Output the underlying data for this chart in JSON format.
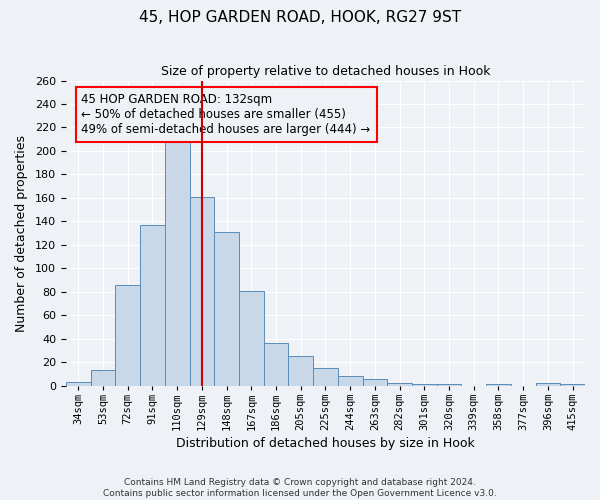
{
  "title": "45, HOP GARDEN ROAD, HOOK, RG27 9ST",
  "subtitle": "Size of property relative to detached houses in Hook",
  "xlabel": "Distribution of detached houses by size in Hook",
  "ylabel": "Number of detached properties",
  "bar_color_face": "#c8d8e8",
  "bar_color_edge": "#5b8db8",
  "bin_labels": [
    "34sqm",
    "53sqm",
    "72sqm",
    "91sqm",
    "110sqm",
    "129sqm",
    "148sqm",
    "167sqm",
    "186sqm",
    "205sqm",
    "225sqm",
    "244sqm",
    "263sqm",
    "282sqm",
    "301sqm",
    "320sqm",
    "339sqm",
    "358sqm",
    "377sqm",
    "396sqm",
    "415sqm"
  ],
  "bin_values": [
    3,
    13,
    86,
    137,
    209,
    161,
    131,
    81,
    36,
    25,
    15,
    8,
    6,
    2,
    1,
    1,
    0,
    1,
    0,
    2,
    1
  ],
  "vline_x": 5.0,
  "vline_color": "#cc0000",
  "ylim": [
    0,
    260
  ],
  "yticks": [
    0,
    20,
    40,
    60,
    80,
    100,
    120,
    140,
    160,
    180,
    200,
    220,
    240,
    260
  ],
  "annotation_title": "45 HOP GARDEN ROAD: 132sqm",
  "annotation_line1": "← 50% of detached houses are smaller (455)",
  "annotation_line2": "49% of semi-detached houses are larger (444) →",
  "footer1": "Contains HM Land Registry data © Crown copyright and database right 2024.",
  "footer2": "Contains public sector information licensed under the Open Government Licence v3.0.",
  "background_color": "#eef2f7"
}
